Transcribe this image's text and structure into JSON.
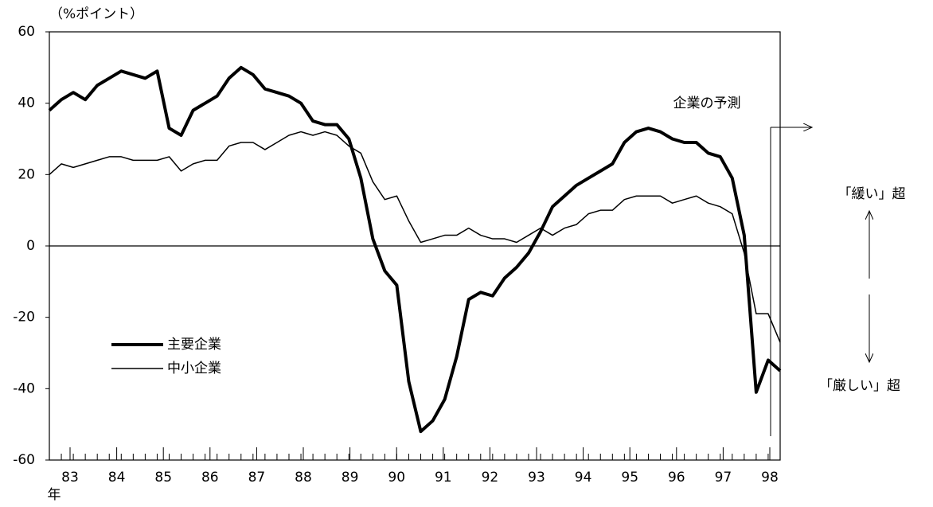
{
  "chart_data": {
    "type": "line",
    "unit_label": "（%ポイント）",
    "x_unit": "年",
    "x_labels": [
      "83",
      "84",
      "85",
      "86",
      "87",
      "88",
      "89",
      "90",
      "91",
      "92",
      "93",
      "94",
      "95",
      "96",
      "97",
      "98"
    ],
    "series": [
      {
        "name": "主要企業",
        "color": "#000000",
        "width": 4,
        "values": [
          38,
          41,
          43,
          41,
          45,
          47,
          49,
          48,
          47,
          49,
          33,
          31,
          38,
          40,
          42,
          47,
          50,
          48,
          44,
          43,
          42,
          40,
          35,
          34,
          34,
          30,
          19,
          2,
          -7,
          -11,
          -38,
          -52,
          -49,
          -43,
          -31,
          -15,
          -13,
          -14,
          -9,
          -6,
          -2,
          4,
          11,
          14,
          17,
          19,
          21,
          23,
          29,
          32,
          33,
          32,
          30,
          29,
          29,
          26,
          25,
          19,
          3,
          -41,
          -32,
          -35
        ]
      },
      {
        "name": "中小企業",
        "color": "#000000",
        "width": 1.5,
        "values": [
          20,
          23,
          22,
          23,
          24,
          25,
          25,
          24,
          24,
          24,
          25,
          21,
          23,
          24,
          24,
          28,
          29,
          29,
          27,
          29,
          31,
          32,
          31,
          32,
          31,
          28,
          26,
          18,
          13,
          14,
          7,
          1,
          2,
          3,
          3,
          5,
          3,
          2,
          2,
          1,
          3,
          5,
          3,
          5,
          6,
          9,
          10,
          10,
          13,
          14,
          14,
          14,
          12,
          13,
          14,
          12,
          11,
          9,
          -2,
          -19,
          -19,
          -27
        ]
      }
    ],
    "ylim": [
      -60,
      60
    ],
    "yticks": [
      -60,
      -40,
      -20,
      0,
      20,
      40,
      60
    ],
    "annotations": {
      "forecast": "企業の予測",
      "loose": "「緩い」超",
      "tight": "「厳しい」超"
    }
  }
}
